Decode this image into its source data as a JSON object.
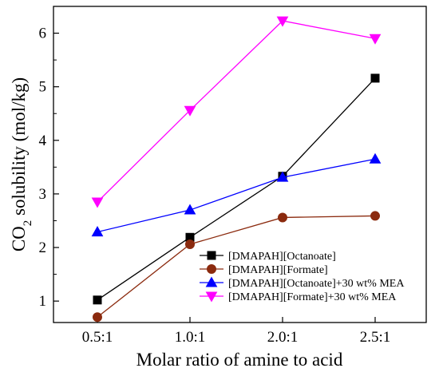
{
  "chart_data": {
    "type": "line",
    "categories": [
      "0.5:1",
      "1.0:1",
      "2.0:1",
      "2.5:1"
    ],
    "xlabel": "Molar ratio of amine to acid",
    "ylabel_main": "CO",
    "ylabel_sub": "2",
    "ylabel_rest": " solubility (mol/kg)",
    "ylim": [
      0.6,
      6.5
    ],
    "yticks": [
      "1",
      "2",
      "3",
      "4",
      "5",
      "6"
    ],
    "grid": false,
    "legend_position": "bottom-right",
    "series": [
      {
        "name": "[DMAPAH][Octanoate]",
        "values": [
          1.02,
          2.19,
          3.33,
          5.16
        ],
        "color": "#000000",
        "marker": "square"
      },
      {
        "name": "[DMAPAH][Formate]",
        "values": [
          0.7,
          2.06,
          2.56,
          2.59
        ],
        "color": "#8b2a0e",
        "marker": "circle"
      },
      {
        "name": "[DMAPAH][Octanoate]+30 wt% MEA",
        "values": [
          2.29,
          2.7,
          3.31,
          3.65
        ],
        "color": "#0000ff",
        "marker": "triangle-up"
      },
      {
        "name": "[DMAPAH][Formate]+30 wt% MEA",
        "values": [
          2.85,
          4.56,
          6.23,
          5.9
        ],
        "color": "#ff00ff",
        "marker": "triangle-down"
      }
    ]
  }
}
